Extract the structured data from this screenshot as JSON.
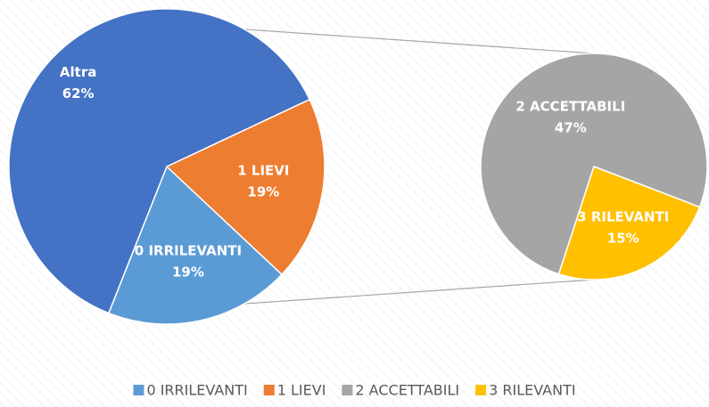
{
  "chart_data": {
    "type": "pie_of_pie",
    "main": {
      "categories": [
        "0 IRRILEVANTI",
        "1 LIEVI",
        "Altra"
      ],
      "values": [
        19,
        19,
        62
      ],
      "value_labels": [
        "19%",
        "19%",
        "62%"
      ],
      "colors": [
        "#5b9bd5",
        "#ed7d31",
        "#4472c4"
      ]
    },
    "secondary": {
      "categories": [
        "2 ACCETTABILI",
        "3 RILEVANTI"
      ],
      "values": [
        47,
        15
      ],
      "value_labels": [
        "47%",
        "15%"
      ],
      "colors": [
        "#a5a5a5",
        "#ffc000"
      ]
    },
    "legend": "bottom"
  }
}
